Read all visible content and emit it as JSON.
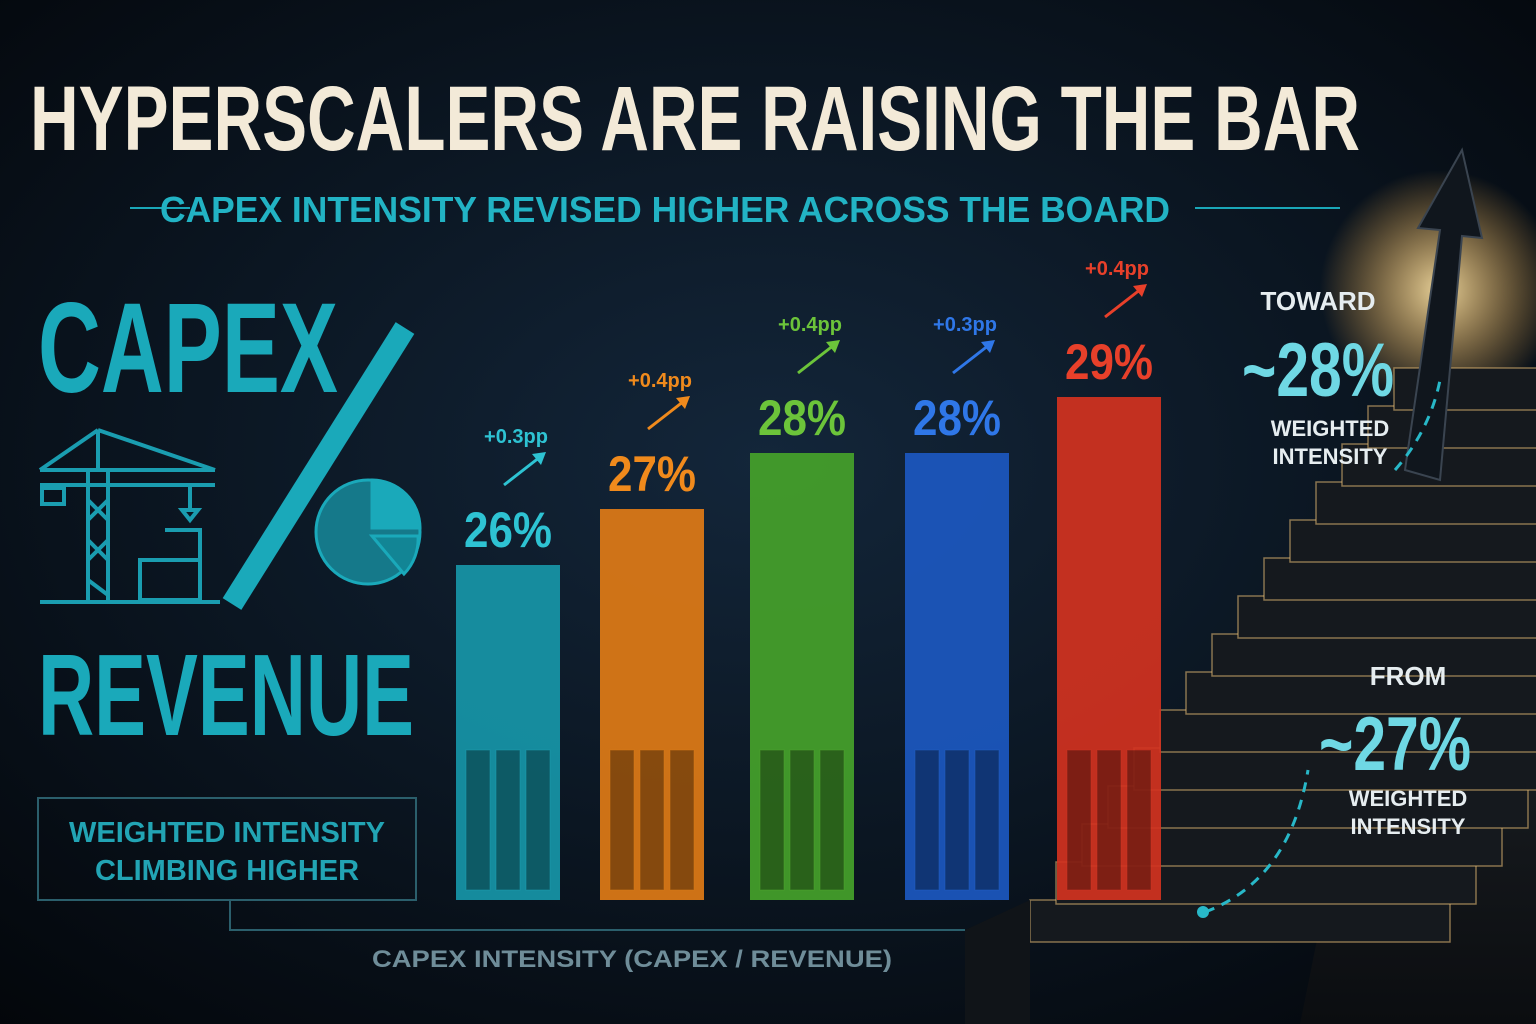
{
  "chart_data": {
    "type": "bar",
    "title": "HYPERSCALERS ARE RAISING THE BAR",
    "subtitle": "CAPEX INTENSITY REVISED HIGHER ACROSS THE BOARD",
    "x_label": "CAPEX INTENSITY (CAPEX / REVENUE)",
    "categories": [
      null,
      null,
      null,
      null,
      null
    ],
    "values": [
      26,
      27,
      28,
      28,
      29
    ],
    "value_labels": [
      "26%",
      "27%",
      "28%",
      "28%",
      "29%"
    ],
    "colors": [
      "#1796a8",
      "#e07b16",
      "#45a22a",
      "#1c58c0",
      "#d2321f"
    ],
    "label_colors": [
      "#2ec3d3",
      "#f08a1c",
      "#6cc43a",
      "#2f77e8",
      "#e8402a"
    ],
    "changes": {
      "values": [
        0.3,
        0.4,
        0.4,
        0.3,
        0.4
      ],
      "value_labels": [
        "+0.3pp",
        "+0.4pp",
        "+0.4pp",
        "+0.3pp",
        "+0.4pp"
      ]
    },
    "left_panel": {
      "top": "CAPEX",
      "bottom": "REVENUE",
      "note": [
        "WEIGHTED INTENSITY",
        "CLIMBING HIGHER"
      ]
    },
    "callouts": [
      {
        "lead": "TOWARD",
        "value": "~28%",
        "caption": [
          "WEIGHTED",
          "INTENSITY"
        ]
      },
      {
        "lead": "FROM",
        "value": "~27%",
        "caption": [
          "WEIGHTED",
          "INTENSITY"
        ]
      }
    ]
  }
}
